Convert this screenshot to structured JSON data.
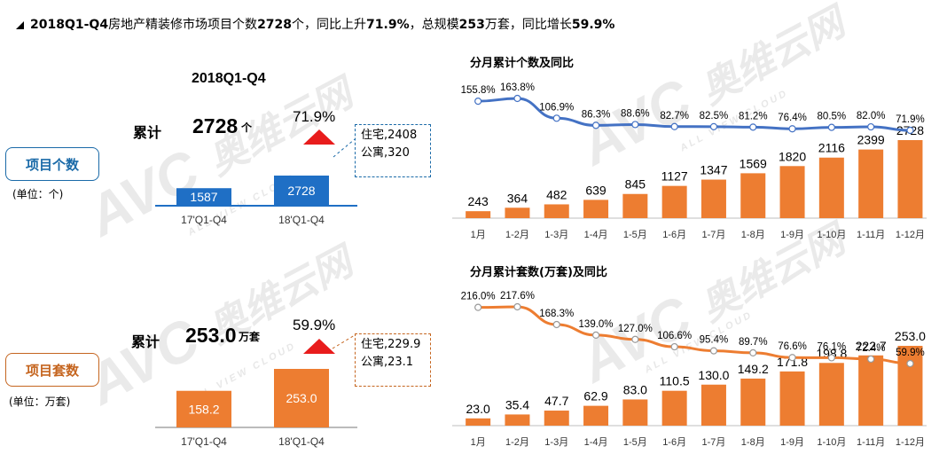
{
  "header": {
    "title_parts": [
      {
        "text": "2018Q1-Q4",
        "bold": true
      },
      {
        "text": "房地产精装修市场项目个数",
        "bold": false
      },
      {
        "text": "2728",
        "bold": true
      },
      {
        "text": "个，同比上升",
        "bold": false
      },
      {
        "text": "71.9%",
        "bold": true
      },
      {
        "text": "，总规模",
        "bold": false
      },
      {
        "text": "253",
        "bold": true
      },
      {
        "text": "万套，同比增长",
        "bold": false
      },
      {
        "text": "59.9%",
        "bold": true
      }
    ]
  },
  "watermark": {
    "logo": "AVC",
    "name": "奥维云网",
    "sub": "ALL VIEW CLOUD"
  },
  "colors": {
    "blue": "#1f6fc5",
    "orange": "#ed7d31",
    "line_blue": "#4472c4",
    "red": "#e81c1c",
    "top_label_blue": "#1a6aa8",
    "bottom_label_orange": "#c5651f"
  },
  "top_panel": {
    "section_label": "项目个数",
    "unit_label": "(单位：个)",
    "period_title": "2018Q1-Q4",
    "cumulative_label": "累计",
    "cumulative_value": "2728",
    "cumulative_unit": "个",
    "growth_pct": "71.9%",
    "callout_lines": [
      "住宅,2408",
      "公寓,320"
    ]
  },
  "bottom_panel": {
    "section_label": "项目套数",
    "unit_label": "(单位：万套)",
    "cumulative_label": "累计",
    "cumulative_value": "253.0",
    "cumulative_unit": "万套",
    "growth_pct": "59.9%",
    "callout_lines": [
      "住宅,229.9",
      "公寓,23.1"
    ]
  },
  "chart_data": [
    {
      "type": "bar",
      "categories": [
        "17'Q1-Q4",
        "18'Q1-Q4"
      ],
      "values": [
        1587,
        2728
      ],
      "value_labels": [
        "1587",
        "2728"
      ]
    },
    {
      "type": "bar+line",
      "title": "分月累计个数及同比",
      "categories": [
        "1月",
        "1-2月",
        "1-3月",
        "1-4月",
        "1-5月",
        "1-6月",
        "1-7月",
        "1-8月",
        "1-9月",
        "1-10月",
        "1-11月",
        "1-12月"
      ],
      "series": [
        {
          "type": "bar",
          "values": [
            243,
            364,
            482,
            639,
            845,
            1127,
            1347,
            1569,
            1820,
            2116,
            2399,
            2728
          ]
        },
        {
          "type": "line",
          "values": [
            155.8,
            163.8,
            106.9,
            86.3,
            88.6,
            82.7,
            82.5,
            81.2,
            76.4,
            80.5,
            82.0,
            71.9
          ],
          "labels": [
            "155.8%",
            "163.8%",
            "106.9%",
            "86.3%",
            "88.6%",
            "82.7%",
            "82.5%",
            "81.2%",
            "76.4%",
            "80.5%",
            "82.0%",
            "71.9%"
          ]
        }
      ]
    },
    {
      "type": "bar",
      "categories": [
        "17'Q1-Q4",
        "18'Q1-Q4"
      ],
      "values": [
        158.2,
        253.0
      ],
      "value_labels": [
        "158.2",
        "253.0"
      ]
    },
    {
      "type": "bar+line",
      "title": "分月累计套数(万套)及同比",
      "categories": [
        "1月",
        "1-2月",
        "1-3月",
        "1-4月",
        "1-5月",
        "1-6月",
        "1-7月",
        "1-8月",
        "1-9月",
        "1-10月",
        "1-11月",
        "1-12月"
      ],
      "series": [
        {
          "type": "bar",
          "values": [
            23.0,
            35.4,
            47.7,
            62.9,
            83.0,
            110.5,
            130.0,
            149.2,
            171.8,
            198.8,
            222.7,
            253.0
          ],
          "labels": [
            "23.0",
            "35.4",
            "47.7",
            "62.9",
            "83.0",
            "110.5",
            "130.0",
            "149.2",
            "171.8",
            "198.8",
            "222.7",
            "253.0"
          ]
        },
        {
          "type": "line",
          "values": [
            216.0,
            217.6,
            168.3,
            139.0,
            127.0,
            106.6,
            95.4,
            89.7,
            76.6,
            76.1,
            72.4,
            59.9
          ],
          "labels": [
            "216.0%",
            "217.6%",
            "168.3%",
            "139.0%",
            "127.0%",
            "106.6%",
            "95.4%",
            "89.7%",
            "76.6%",
            "76.1%",
            "72.4%",
            "59.9%"
          ]
        }
      ]
    }
  ]
}
